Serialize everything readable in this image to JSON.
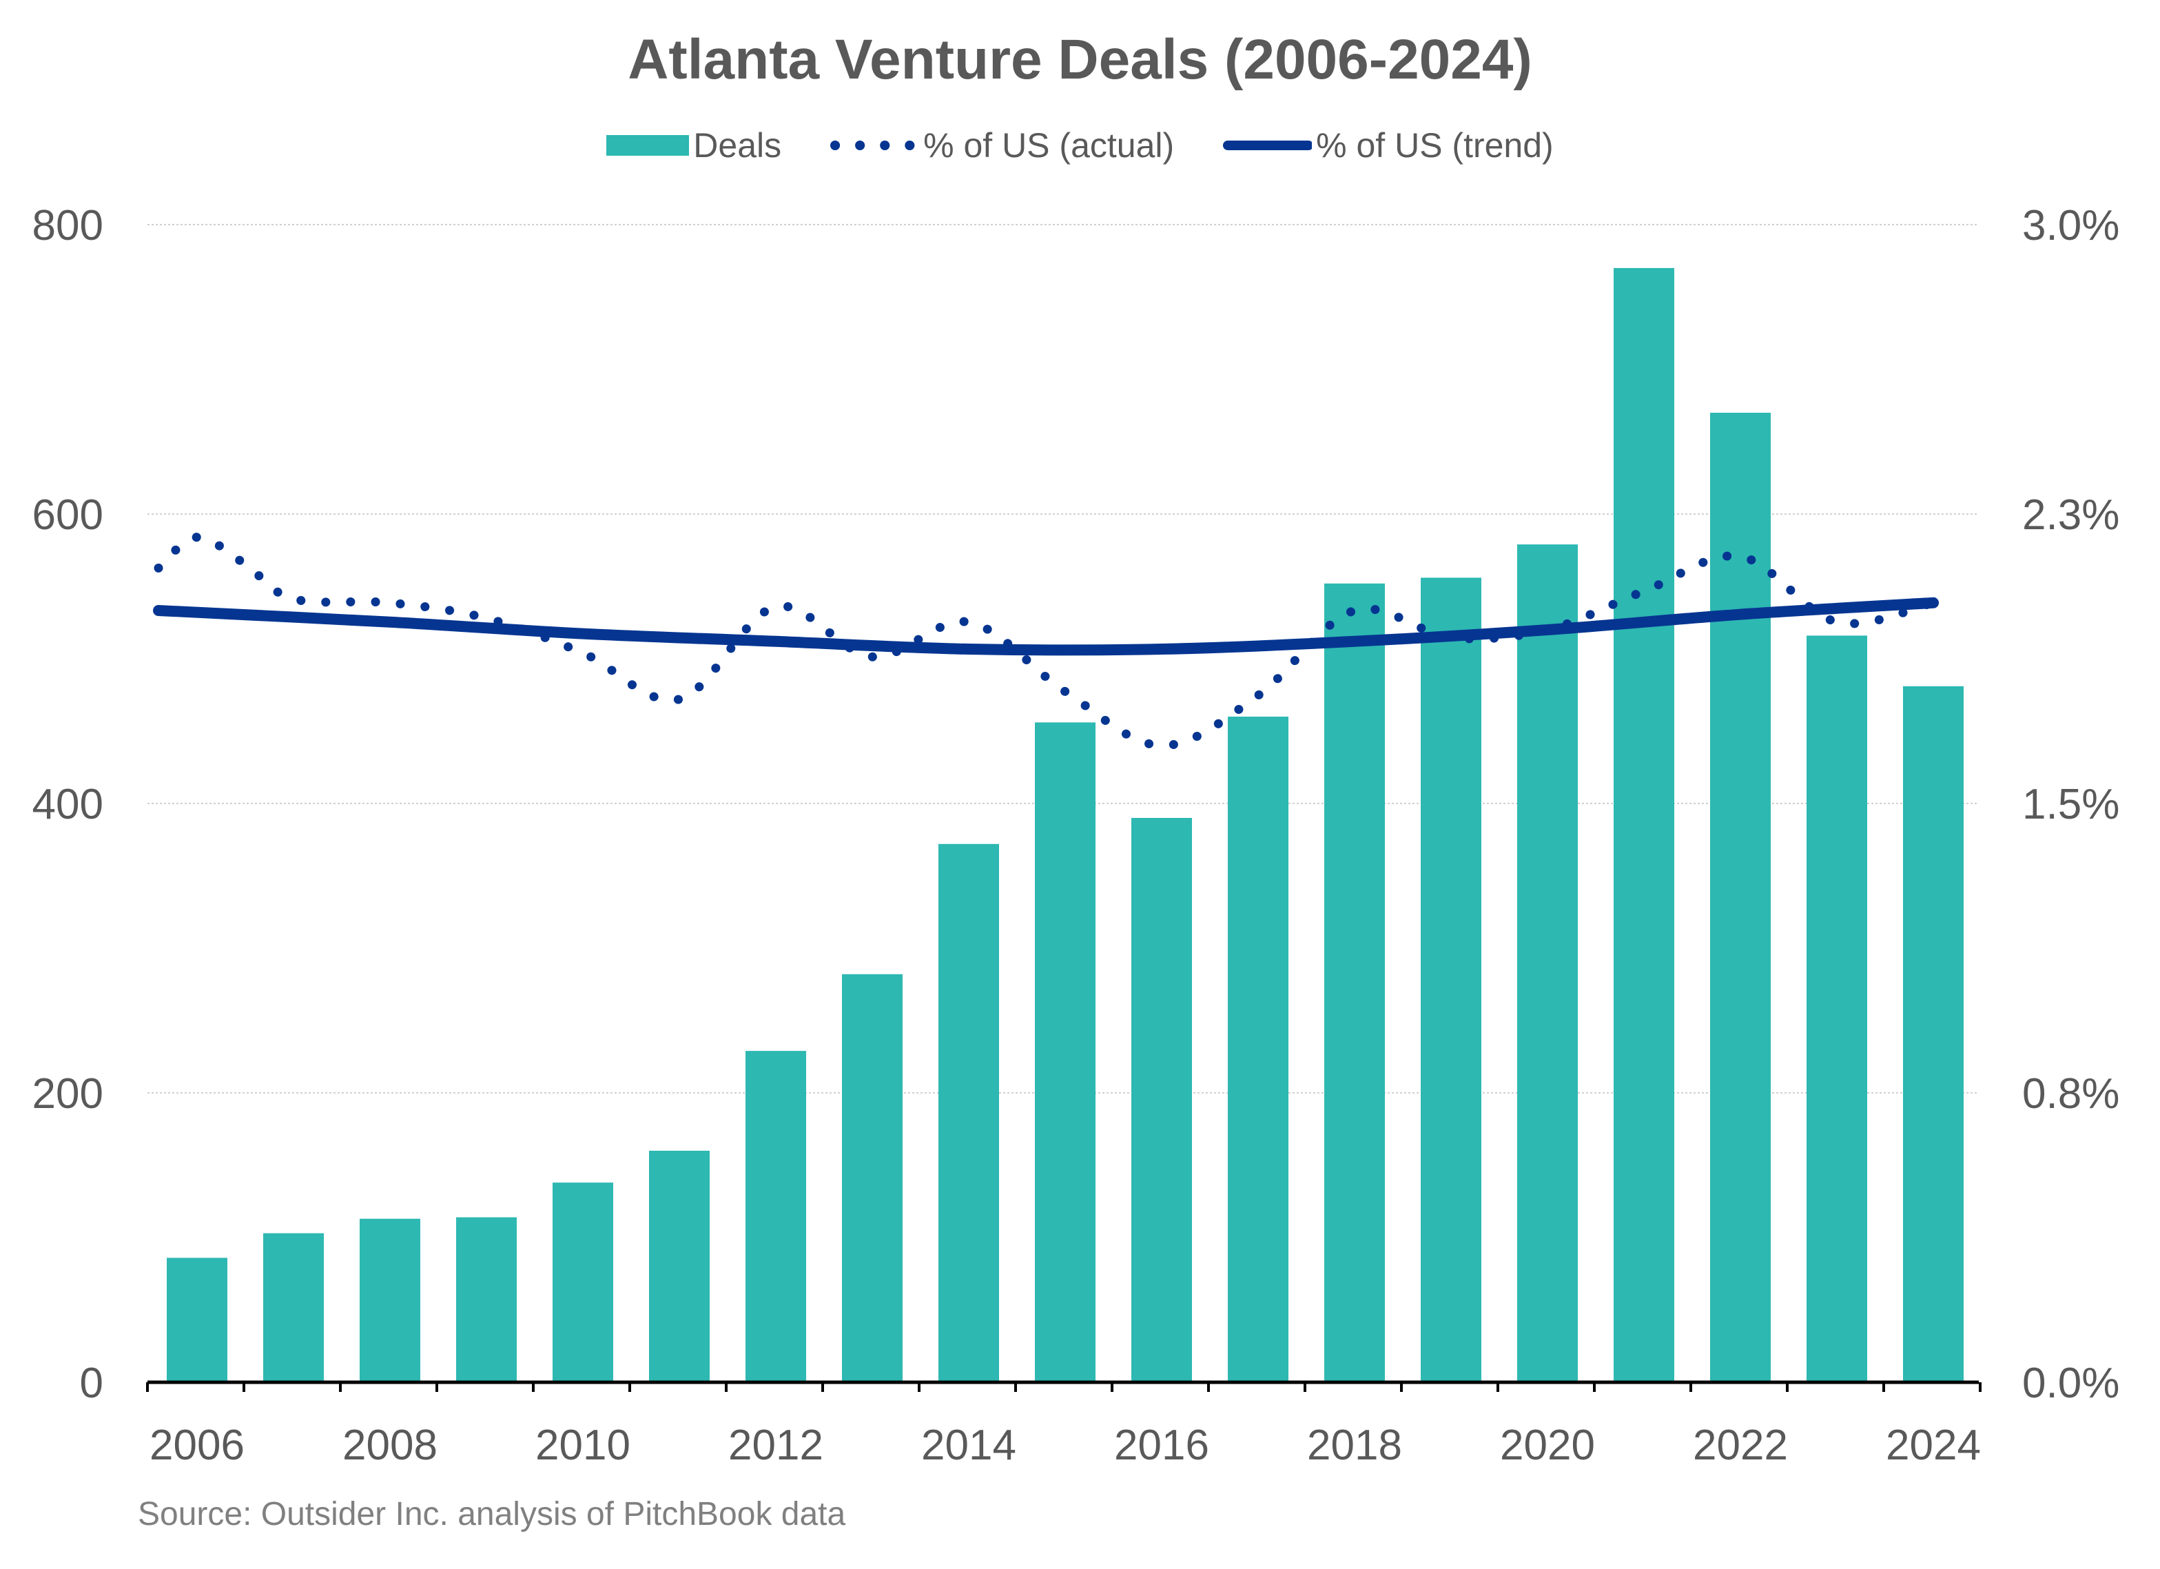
{
  "chart_data": {
    "type": "bar",
    "title": "Atlanta Venture Deals (2006-2024)",
    "categories": [
      "2006",
      "2007",
      "2008",
      "2009",
      "2010",
      "2011",
      "2012",
      "2013",
      "2014",
      "2015",
      "2016",
      "2017",
      "2018",
      "2019",
      "2020",
      "2021",
      "2022",
      "2023",
      "2024"
    ],
    "series": [
      {
        "name": "Deals",
        "type": "bar",
        "axis": "left",
        "color": "#2DB8B2",
        "values": [
          86,
          103,
          113,
          114,
          138,
          160,
          229,
          282,
          372,
          456,
          390,
          460,
          552,
          556,
          579,
          770,
          670,
          516,
          481
        ]
      },
      {
        "name": "% of US (actual)",
        "type": "line",
        "style": "dotted",
        "axis": "right",
        "color": "#063591",
        "x": [
          2005.6,
          2006,
          2006.5,
          2007,
          2008,
          2009,
          2010,
          2011,
          2012,
          2013,
          2014,
          2015,
          2016,
          2017,
          2018,
          2019,
          2020,
          2021,
          2022,
          2023,
          2024
        ],
        "values": [
          2.11,
          2.19,
          2.12,
          2.03,
          2.02,
          1.98,
          1.89,
          1.77,
          2.01,
          1.88,
          1.97,
          1.79,
          1.65,
          1.78,
          2.0,
          1.93,
          1.95,
          2.05,
          2.14,
          1.97,
          2.02
        ]
      },
      {
        "name": "% of US (trend)",
        "type": "line",
        "style": "solid",
        "axis": "right",
        "color": "#063591",
        "x": [
          2005.6,
          2008,
          2010,
          2012,
          2014,
          2016,
          2018,
          2020,
          2022,
          2024
        ],
        "values": [
          2.0,
          1.97,
          1.94,
          1.92,
          1.9,
          1.9,
          1.92,
          1.95,
          1.99,
          2.02
        ]
      }
    ],
    "left_axis": {
      "ylim": [
        0,
        800
      ],
      "ticks": [
        "0",
        "200",
        "400",
        "600",
        "800"
      ]
    },
    "right_axis": {
      "ylim": [
        0,
        3.0
      ],
      "ticks": [
        "0.0%",
        "0.8%",
        "1.5%",
        "2.3%",
        "3.0%"
      ]
    },
    "x_tick_labels": [
      "2006",
      "2008",
      "2010",
      "2012",
      "2014",
      "2016",
      "2018",
      "2020",
      "2022",
      "2024"
    ],
    "grid": true,
    "legend": "top-center",
    "source": "Source: Outsider Inc. analysis of PitchBook data"
  }
}
